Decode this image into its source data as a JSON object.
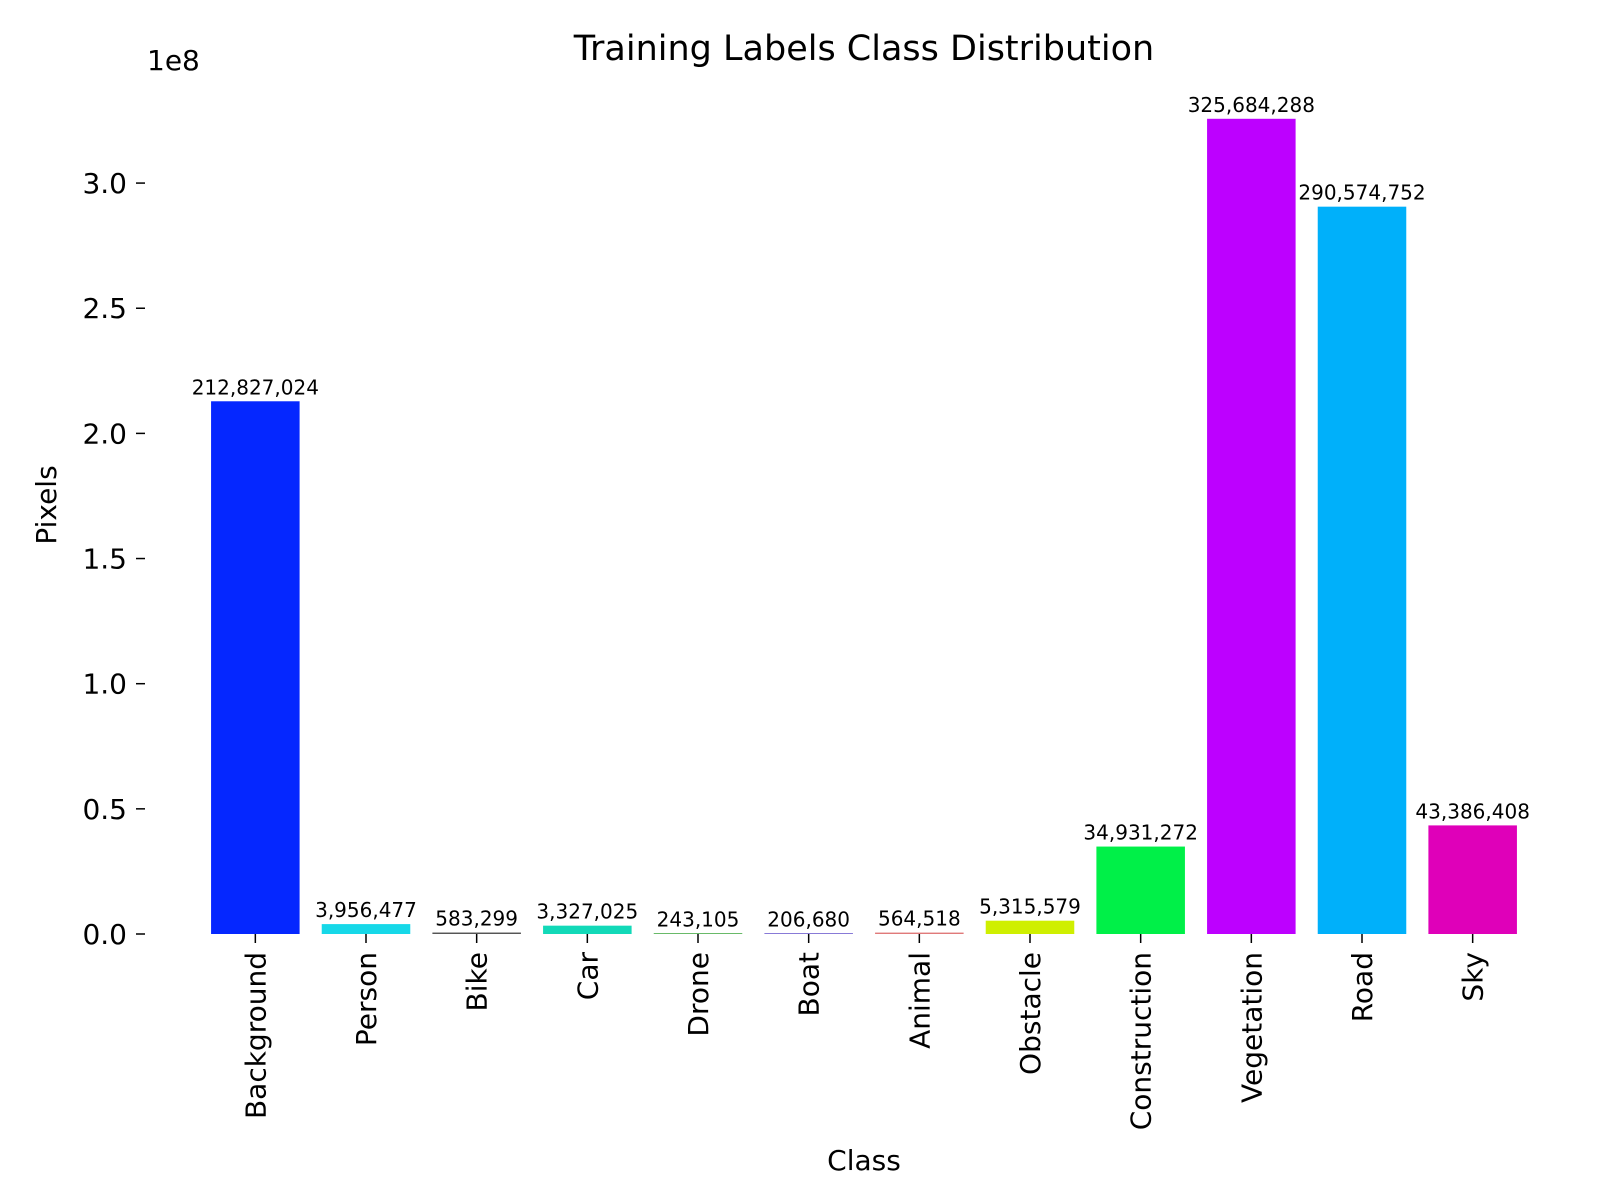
{
  "chart_data": {
    "type": "bar",
    "title": "Training Labels Class Distribution",
    "xlabel": "Class",
    "ylabel": "Pixels",
    "y_offset_label": "1e8",
    "ylim": [
      0,
      326000000
    ],
    "yticks": [
      0,
      50000000,
      100000000,
      150000000,
      200000000,
      250000000,
      300000000
    ],
    "ytick_labels": [
      "0.0",
      "0.5",
      "1.0",
      "1.5",
      "2.0",
      "2.5",
      "3.0"
    ],
    "grid": false,
    "categories": [
      "Background",
      "Person",
      "Bike",
      "Car",
      "Drone",
      "Boat",
      "Animal",
      "Obstacle",
      "Construction",
      "Vegetation",
      "Road",
      "Sky"
    ],
    "values": [
      212827024,
      3956477,
      583299,
      3327025,
      243105,
      206680,
      564518,
      5315579,
      34931272,
      325684288,
      290574752,
      43386408
    ],
    "value_labels": [
      "212,827,024",
      "3,956,477",
      "583,299",
      "3,327,025",
      "243,105",
      "206,680",
      "564,518",
      "5,315,579",
      "34,931,272",
      "325,684,288",
      "290,574,752",
      "43,386,408"
    ],
    "colors": [
      "#0527ff",
      "#16d8e8",
      "#555555",
      "#12d9b8",
      "#44aa44",
      "#6a5acd",
      "#e07a7a",
      "#cfef00",
      "#00f048",
      "#bd00ff",
      "#00b0fa",
      "#df00b9"
    ]
  }
}
